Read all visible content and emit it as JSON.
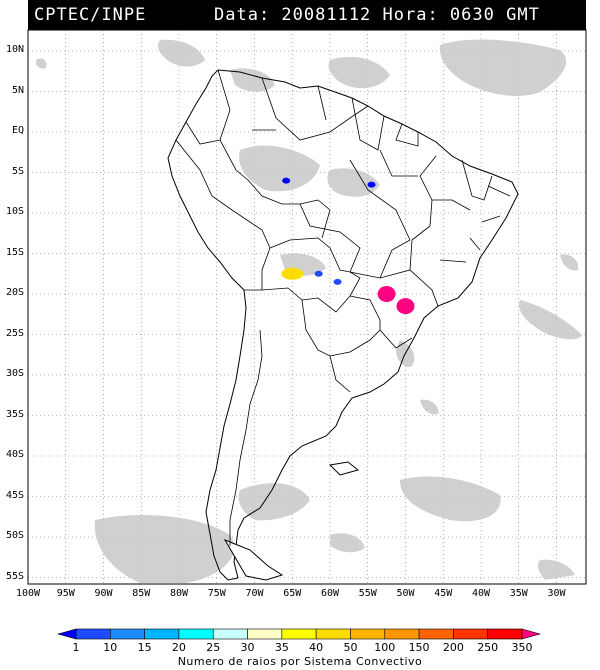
{
  "header": {
    "source": "CPTEC/INPE",
    "datetime": "Data: 20081112 Hora: 0630 GMT"
  },
  "lat_labels": [
    "10N",
    "5N",
    "EQ",
    "5S",
    "10S",
    "15S",
    "20S",
    "25S",
    "30S",
    "35S",
    "40S",
    "45S",
    "50S",
    "55S"
  ],
  "lon_labels": [
    "100W",
    "95W",
    "90W",
    "85W",
    "80W",
    "75W",
    "70W",
    "65W",
    "60W",
    "55W",
    "50W",
    "45W",
    "40W",
    "35W",
    "30W"
  ],
  "legend": {
    "title": "Numero de raios por Sistema Convectivo",
    "values": [
      "1",
      "10",
      "15",
      "20",
      "25",
      "30",
      "35",
      "40",
      "50",
      "100",
      "150",
      "200",
      "250",
      "350"
    ],
    "colors": [
      "#0000ff",
      "#1e4bff",
      "#1e8cff",
      "#00b4ff",
      "#00ffff",
      "#c8ffff",
      "#ffffc8",
      "#ffff00",
      "#ffdc00",
      "#ffb400",
      "#ff9600",
      "#ff6400",
      "#ff3200",
      "#ff0000",
      "#ff0080"
    ]
  },
  "lightning_systems": [
    {
      "lon": -54.5,
      "lat": -6.5,
      "color_index": 0
    },
    {
      "lon": -65.8,
      "lat": -6.0,
      "color_index": 0
    },
    {
      "lon": -65.0,
      "lat": -17.5,
      "color_index": 8
    },
    {
      "lon": -61.5,
      "lat": -17.5,
      "color_index": 1
    },
    {
      "lon": -59.0,
      "lat": -18.5,
      "color_index": 1
    },
    {
      "lon": -52.5,
      "lat": -20.0,
      "color_index": 14
    },
    {
      "lon": -50.0,
      "lat": -21.5,
      "color_index": 14
    }
  ]
}
